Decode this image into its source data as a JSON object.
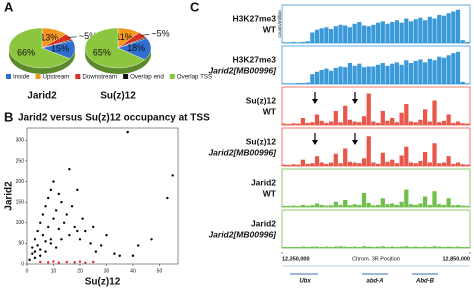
{
  "panels": [
    "A",
    "B",
    "C"
  ],
  "legend": [
    {
      "name": "Inside",
      "color": "#2f6fd0"
    },
    {
      "name": "Upstream",
      "color": "#f39a1e"
    },
    {
      "name": "Downstream",
      "color": "#d83020"
    },
    {
      "name": "Overlap end",
      "color": "#111111"
    },
    {
      "name": "Overlap TSS",
      "color": "#8cc63f"
    }
  ],
  "chart_data": [
    {
      "type": "pie",
      "title": "Jarid2",
      "values": [
        15,
        13,
        5,
        1,
        66
      ],
      "value_labels": [
        "15%",
        "13%",
        "~5%",
        null,
        "66%"
      ]
    },
    {
      "type": "pie",
      "title": "Su(z)12",
      "values": [
        18,
        11,
        5,
        1,
        65
      ],
      "value_labels": [
        "18%",
        "11%",
        "~5%",
        null,
        "65%"
      ]
    },
    {
      "type": "scatter",
      "title": "Jarid2 versus Su(z)12 occupancy at TSS",
      "x_label": "Su(z)12",
      "y_label": "Jarid2",
      "xlim": [
        0,
        57
      ],
      "xticks": [
        0,
        10,
        20,
        30,
        40,
        50
      ],
      "ylim": [
        0,
        330
      ],
      "yticks": [
        0,
        50,
        100,
        150,
        200,
        250,
        300
      ],
      "series": [
        {
          "color": "#000000",
          "x": [
            1,
            2,
            2,
            3,
            3,
            4,
            4,
            5,
            5,
            6,
            6,
            7,
            7,
            8,
            8,
            9,
            9,
            10,
            10,
            11,
            12,
            12,
            13,
            14,
            15,
            16,
            17,
            18,
            19,
            20,
            21,
            22,
            24,
            25,
            26,
            28,
            30,
            33,
            35,
            40,
            42,
            47,
            53,
            55,
            3,
            5,
            7,
            9,
            11,
            13,
            16,
            19,
            38
          ],
          "y": [
            10,
            25,
            40,
            30,
            60,
            45,
            80,
            35,
            100,
            70,
            120,
            55,
            140,
            90,
            160,
            60,
            180,
            110,
            200,
            130,
            85,
            170,
            150,
            100,
            120,
            230,
            140,
            90,
            180,
            60,
            110,
            80,
            50,
            90,
            30,
            45,
            70,
            25,
            20,
            20,
            45,
            60,
            160,
            215,
            15,
            20,
            30,
            50,
            40,
            60,
            70,
            80,
            320
          ]
        },
        {
          "color": "#e02020",
          "x": [
            5,
            8,
            10,
            12,
            15,
            18,
            20,
            22,
            25
          ],
          "y": [
            5,
            4,
            6,
            3,
            5,
            4,
            6,
            3,
            5
          ]
        }
      ]
    },
    {
      "type": "track",
      "y_label": "counts/million",
      "x_label": "Chrom. 3R Position",
      "xlim": [
        12350000,
        12850000
      ],
      "xticks": [
        {
          "value": 12350000,
          "label": "12,350,000"
        },
        {
          "value": 12850000,
          "label": "12,850,000"
        }
      ],
      "ylim": [
        0,
        100
      ],
      "genes": [
        "Ubx",
        "abd-A",
        "Abd-B"
      ],
      "x": [
        12350000,
        12362500,
        12375000,
        12387500,
        12400000,
        12412500,
        12425000,
        12437500,
        12450000,
        12462500,
        12475000,
        12487500,
        12500000,
        12512500,
        12525000,
        12537500,
        12550000,
        12562500,
        12575000,
        12587500,
        12600000,
        12612500,
        12625000,
        12637500,
        12650000,
        12662500,
        12675000,
        12687500,
        12700000,
        12712500,
        12725000,
        12737500,
        12750000,
        12762500,
        12775000,
        12787500,
        12800000,
        12812500,
        12825000,
        12837500
      ],
      "series": [
        {
          "name": "H3K27me3",
          "genotype": "WT",
          "color": "#3a9ad9",
          "values": [
            2,
            2,
            3,
            2,
            3,
            5,
            30,
            38,
            42,
            45,
            40,
            48,
            52,
            50,
            45,
            55,
            60,
            50,
            48,
            52,
            58,
            62,
            55,
            60,
            65,
            58,
            70,
            62,
            68,
            72,
            65,
            75,
            70,
            80,
            78,
            85,
            90,
            95,
            8,
            3
          ]
        },
        {
          "name": "H3K27me3",
          "genotype": "Jarid2[MB00996]",
          "color": "#3a9ad9",
          "values": [
            2,
            2,
            2,
            3,
            3,
            4,
            28,
            35,
            40,
            44,
            38,
            46,
            50,
            48,
            60,
            52,
            58,
            48,
            50,
            50,
            55,
            60,
            52,
            58,
            62,
            55,
            68,
            60,
            66,
            70,
            62,
            72,
            68,
            78,
            75,
            82,
            88,
            92,
            6,
            2
          ]
        },
        {
          "name": "Su(z)12",
          "genotype": "WT",
          "color": "#e8574a",
          "values": [
            4,
            3,
            5,
            4,
            20,
            6,
            8,
            30,
            12,
            6,
            10,
            40,
            8,
            55,
            15,
            10,
            8,
            25,
            90,
            10,
            6,
            40,
            12,
            20,
            8,
            35,
            60,
            10,
            8,
            15,
            45,
            10,
            70,
            8,
            12,
            30,
            6,
            10,
            5,
            4
          ]
        },
        {
          "name": "Su(z)12",
          "genotype": "Jarid2[MB00996]",
          "color": "#e8574a",
          "values": [
            4,
            3,
            5,
            4,
            18,
            6,
            8,
            28,
            10,
            6,
            10,
            35,
            8,
            50,
            12,
            10,
            8,
            22,
            85,
            10,
            6,
            38,
            12,
            18,
            8,
            30,
            55,
            10,
            8,
            14,
            40,
            10,
            65,
            8,
            10,
            28,
            6,
            10,
            5,
            4
          ]
        },
        {
          "name": "Jarid2",
          "genotype": "WT",
          "color": "#6fbf4a",
          "values": [
            3,
            3,
            4,
            3,
            6,
            4,
            5,
            10,
            6,
            4,
            5,
            15,
            6,
            20,
            5,
            8,
            6,
            40,
            12,
            5,
            6,
            25,
            8,
            10,
            6,
            15,
            50,
            8,
            6,
            10,
            30,
            6,
            45,
            8,
            6,
            25,
            5,
            6,
            4,
            3
          ]
        },
        {
          "name": "Jarid2",
          "genotype": "Jarid2[MB00996]",
          "color": "#6fbf4a",
          "values": [
            3,
            3,
            3,
            3,
            4,
            3,
            4,
            4,
            3,
            4,
            3,
            4,
            5,
            4,
            3,
            4,
            3,
            5,
            4,
            3,
            4,
            5,
            3,
            4,
            3,
            4,
            5,
            3,
            4,
            3,
            4,
            3,
            5,
            4,
            3,
            4,
            3,
            4,
            3,
            3
          ]
        }
      ]
    }
  ]
}
